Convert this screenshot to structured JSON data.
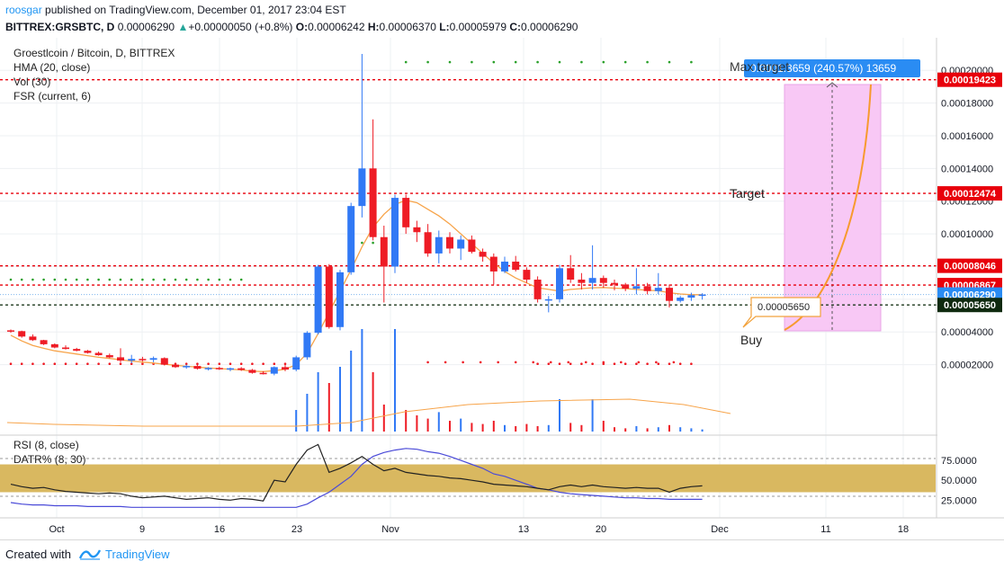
{
  "header": {
    "author": "roosgar",
    "published": " published on TradingView.com, December 01, 2017 23:04 EST",
    "symbol": "BITTREX:GRSBTC, D",
    "last": "0.00006290",
    "change": "+0.00000050 (+0.8%)",
    "o_label": "O:",
    "o": "0.00006242",
    "h_label": "H:",
    "h": "0.00006370",
    "l_label": "L:",
    "l": "0.00005979",
    "c_label": "C:",
    "c": "0.00006290"
  },
  "legend": {
    "title": "Groestlcoin / Bitcoin, D, BITTREX",
    "hma": "HMA (20, close)",
    "vol": "Vol (30)",
    "fsr": "FSR (current, 6)",
    "rsi": "RSI (8, close)",
    "datr": "DATR% (8, 30)"
  },
  "annotations": {
    "max_target": "Max target",
    "target": "Target",
    "buy": "Buy",
    "buy_callout": "0.00005650",
    "measure": "0.0001.3659 (240.57%) 13659"
  },
  "price_levels": {
    "max_target": "0.00019423",
    "target": "0.00012474",
    "r1": "0.00008046",
    "r2": "0.00006867",
    "current": "0.00006290",
    "buy": "0.00005650"
  },
  "footer": {
    "created": "Created with",
    "brand": "TradingView"
  },
  "colors": {
    "up": "#3179f5",
    "down": "#ee1c25",
    "hma": "#f7a44a",
    "rsi": "#222222",
    "datr": "#4a4ad8",
    "band": "#d9b860",
    "target_zone": "#f8c8f5",
    "level": "#e8000b",
    "buy_level": "#1f3a1f",
    "axis_text": "#131722"
  },
  "chart_data": {
    "type": "candlestick",
    "pair": "GRSBTC",
    "ylim": [
      0,
      0.00021
    ],
    "yticks": [
      "0.00002000",
      "0.00004000",
      "0.00006000",
      "0.00008000",
      "0.00010000",
      "0.00012000",
      "0.00014000",
      "0.00016000",
      "0.00018000",
      "0.00020000"
    ],
    "xticks": [
      "Oct",
      "9",
      "16",
      "23",
      "Nov",
      "13",
      "20",
      "Dec",
      "11",
      "18"
    ],
    "candles": [
      [
        4.1e-05,
        4.15e-05,
        3.95e-05,
        4.05e-05
      ],
      [
        4.05e-05,
        4.08e-05,
        3.65e-05,
        3.72e-05
      ],
      [
        3.72e-05,
        3.85e-05,
        3.45e-05,
        3.5e-05
      ],
      [
        3.5e-05,
        3.52e-05,
        3.2e-05,
        3.25e-05
      ],
      [
        3.25e-05,
        3.3e-05,
        3e-05,
        3.05e-05
      ],
      [
        3.05e-05,
        3.18e-05,
        2.93e-05,
        2.96e-05
      ],
      [
        2.96e-05,
        3.03e-05,
        2.82e-05,
        2.85e-05
      ],
      [
        2.85e-05,
        2.9e-05,
        2.68e-05,
        2.72e-05
      ],
      [
        2.72e-05,
        2.8e-05,
        2.55e-05,
        2.58e-05
      ],
      [
        2.58e-05,
        2.68e-05,
        2.4e-05,
        2.45e-05
      ],
      [
        2.45e-05,
        3e-05,
        2.15e-05,
        2.25e-05
      ],
      [
        2.25e-05,
        2.6e-05,
        2.1e-05,
        2.35e-05
      ],
      [
        2.35e-05,
        2.48e-05,
        2.2e-05,
        2.3e-05
      ],
      [
        2.3e-05,
        2.5e-05,
        2.15e-05,
        2.4e-05
      ],
      [
        2.4e-05,
        2.45e-05,
        1.95e-05,
        2e-05
      ],
      [
        2e-05,
        2.1e-05,
        1.8e-05,
        1.85e-05
      ],
      [
        1.85e-05,
        2e-05,
        1.75e-05,
        1.92e-05
      ],
      [
        1.92e-05,
        1.98e-05,
        1.7e-05,
        1.75e-05
      ],
      [
        1.75e-05,
        1.85e-05,
        1.65e-05,
        1.8e-05
      ],
      [
        1.8e-05,
        1.88e-05,
        1.68e-05,
        1.72e-05
      ],
      [
        1.72e-05,
        1.82e-05,
        1.6e-05,
        1.78e-05
      ],
      [
        1.78e-05,
        1.85e-05,
        1.62e-05,
        1.68e-05
      ],
      [
        1.68e-05,
        1.74e-05,
        1.45e-05,
        1.5e-05
      ],
      [
        1.5e-05,
        1.6e-05,
        1.4e-05,
        1.45e-05
      ],
      [
        1.45e-05,
        1.9e-05,
        1.35e-05,
        1.85e-05
      ],
      [
        1.85e-05,
        2e-05,
        1.6e-05,
        1.7e-05
      ],
      [
        1.7e-05,
        2.55e-05,
        1.6e-05,
        2.45e-05
      ],
      [
        2.45e-05,
        4.05e-05,
        2.3e-05,
        3.95e-05
      ],
      [
        3.95e-05,
        8.1e-05,
        3.85e-05,
        8e-05
      ],
      [
        8e-05,
        8.15e-05,
        4.2e-05,
        4.3e-05
      ],
      [
        4.3e-05,
        7.8e-05,
        4.1e-05,
        7.65e-05
      ],
      [
        7.65e-05,
        0.000119,
        7.5e-05,
        0.000117
      ],
      [
        0.000117,
        0.00021,
        0.00011,
        0.00014
      ],
      [
        0.00014,
        0.00017,
        9.6e-05,
        9.8e-05
      ],
      [
        9.8e-05,
        0.000105,
        5.8e-05,
        8e-05
      ],
      [
        8e-05,
        0.000124,
        7.6e-05,
        0.000122
      ],
      [
        0.000122,
        0.000124,
        0.0001,
        0.000104
      ],
      [
        0.000104,
        0.000108,
        9.5e-05,
        0.000101
      ],
      [
        0.000101,
        0.000106,
        8.6e-05,
        8.8e-05
      ],
      [
        8.8e-05,
        0.000102,
        8.2e-05,
        9.8e-05
      ],
      [
        9.8e-05,
        0.000101,
        8.8e-05,
        9.1e-05
      ],
      [
        9.1e-05,
        9.9e-05,
        8.4e-05,
        9.65e-05
      ],
      [
        9.65e-05,
        9.9e-05,
        8.8e-05,
        8.9e-05
      ],
      [
        8.9e-05,
        9.1e-05,
        8.3e-05,
        8.6e-05
      ],
      [
        8.6e-05,
        8.8e-05,
        6.9e-05,
        7.7e-05
      ],
      [
        7.7e-05,
        8.6e-05,
        7.6e-05,
        8.3e-05
      ],
      [
        8.3e-05,
        8.65e-05,
        7.7e-05,
        7.8e-05
      ],
      [
        7.8e-05,
        7.95e-05,
        7e-05,
        7.2e-05
      ],
      [
        7.2e-05,
        7.4e-05,
        5.8e-05,
        6e-05
      ],
      [
        6e-05,
        6.2e-05,
        5.2e-05,
        6e-05
      ],
      [
        6e-05,
        8.1e-05,
        5.8e-05,
        7.9e-05
      ],
      [
        7.9e-05,
        8.7e-05,
        7e-05,
        7.2e-05
      ],
      [
        7.2e-05,
        7.6e-05,
        6.6e-05,
        7e-05
      ],
      [
        7e-05,
        9.3e-05,
        6.6e-05,
        7.3e-05
      ],
      [
        7.3e-05,
        7.45e-05,
        6.7e-05,
        7e-05
      ],
      [
        7e-05,
        7.2e-05,
        6.55e-05,
        6.9e-05
      ],
      [
        6.9e-05,
        7e-05,
        6.5e-05,
        6.65e-05
      ],
      [
        6.65e-05,
        7.9e-05,
        6.3e-05,
        6.8e-05
      ],
      [
        6.8e-05,
        7e-05,
        6.3e-05,
        6.5e-05
      ],
      [
        6.5e-05,
        7.6e-05,
        6.3e-05,
        6.7e-05
      ],
      [
        6.7e-05,
        6.9e-05,
        5.5e-05,
        5.9e-05
      ],
      [
        5.9e-05,
        6.2e-05,
        5.8e-05,
        6.1e-05
      ],
      [
        6.1e-05,
        6.4e-05,
        5.9e-05,
        6.25e-05
      ],
      [
        6.24e-05,
        6.37e-05,
        5.98e-05,
        6.29e-05
      ]
    ],
    "hma": [
      3.8e-05,
      3.45e-05,
      3.18e-05,
      3e-05,
      2.85e-05,
      2.75e-05,
      2.65e-05,
      2.55e-05,
      2.45e-05,
      2.38e-05,
      2.3e-05,
      2.22e-05,
      2.16e-05,
      2.1e-05,
      2.03e-05,
      1.96e-05,
      1.9e-05,
      1.85e-05,
      1.8e-05,
      1.76e-05,
      1.72e-05,
      1.68e-05,
      1.6e-05,
      1.58e-05,
      1.63e-05,
      1.72e-05,
      2e-05,
      2.7e-05,
      3.9e-05,
      5.2e-05,
      6.5e-05,
      7.8e-05,
      9.2e-05,
      0.000104,
      0.000112,
      0.000118,
      0.0001205,
      0.000119,
      0.000115,
      0.000111,
      0.000106,
      0.0001,
      9.4e-05,
      8.8e-05,
      8.2e-05,
      7.7e-05,
      7.3e-05,
      7e-05,
      6.7e-05,
      6.6e-05,
      6.5e-05,
      6.6e-05,
      6.65e-05,
      6.7e-05,
      6.72e-05,
      6.68e-05,
      6.65e-05,
      6.6e-05,
      6.55e-05,
      6.52e-05,
      6.4e-05,
      6.32e-05,
      6.28e-05,
      6.28e-05
    ],
    "volume": [
      0,
      0,
      0,
      0,
      0,
      0,
      0,
      0,
      0,
      0,
      0,
      0,
      0,
      0,
      0,
      0,
      0,
      0,
      0,
      0,
      0,
      0,
      0,
      0,
      0,
      0,
      0.2,
      0.35,
      0.55,
      0.45,
      0.6,
      0.75,
      0.95,
      0.55,
      0.25,
      0.95,
      0.2,
      0.15,
      0.12,
      0.18,
      0.1,
      0.12,
      0.08,
      0.07,
      0.1,
      0.06,
      0.05,
      0.07,
      0.05,
      0.06,
      0.3,
      0.08,
      0.06,
      0.3,
      0.1,
      0.04,
      0.03,
      0.05,
      0.03,
      0.04,
      0.06,
      0.04,
      0.03,
      0.02
    ],
    "rsi": [
      45,
      42,
      40,
      41,
      38,
      36,
      35,
      34,
      33,
      34,
      33,
      30,
      28,
      29,
      30,
      28,
      26,
      27,
      28,
      26,
      25,
      27,
      26,
      24,
      50,
      48,
      70,
      88,
      95,
      60,
      65,
      72,
      80,
      70,
      62,
      65,
      60,
      58,
      56,
      55,
      53,
      52,
      50,
      48,
      45,
      44,
      43,
      42,
      40,
      38,
      42,
      44,
      42,
      44,
      42,
      41,
      40,
      41,
      40,
      40,
      35,
      40,
      42,
      43
    ],
    "datr": [
      22,
      20,
      19,
      19,
      18,
      18,
      18,
      17,
      17,
      17,
      17,
      16,
      16,
      16,
      16,
      16,
      16,
      16,
      16,
      16,
      16,
      16,
      16,
      16,
      16,
      16,
      16,
      20,
      28,
      35,
      45,
      55,
      70,
      80,
      85,
      88,
      90,
      89,
      86,
      84,
      80,
      75,
      70,
      65,
      58,
      55,
      50,
      45,
      40,
      38,
      35,
      33,
      32,
      31,
      30,
      29,
      28,
      28,
      27,
      27,
      26,
      26,
      26,
      26
    ],
    "rsi_band": [
      35,
      70
    ],
    "rsi_ticks": [
      "25.0000",
      "50.0000",
      "75.0000"
    ]
  }
}
